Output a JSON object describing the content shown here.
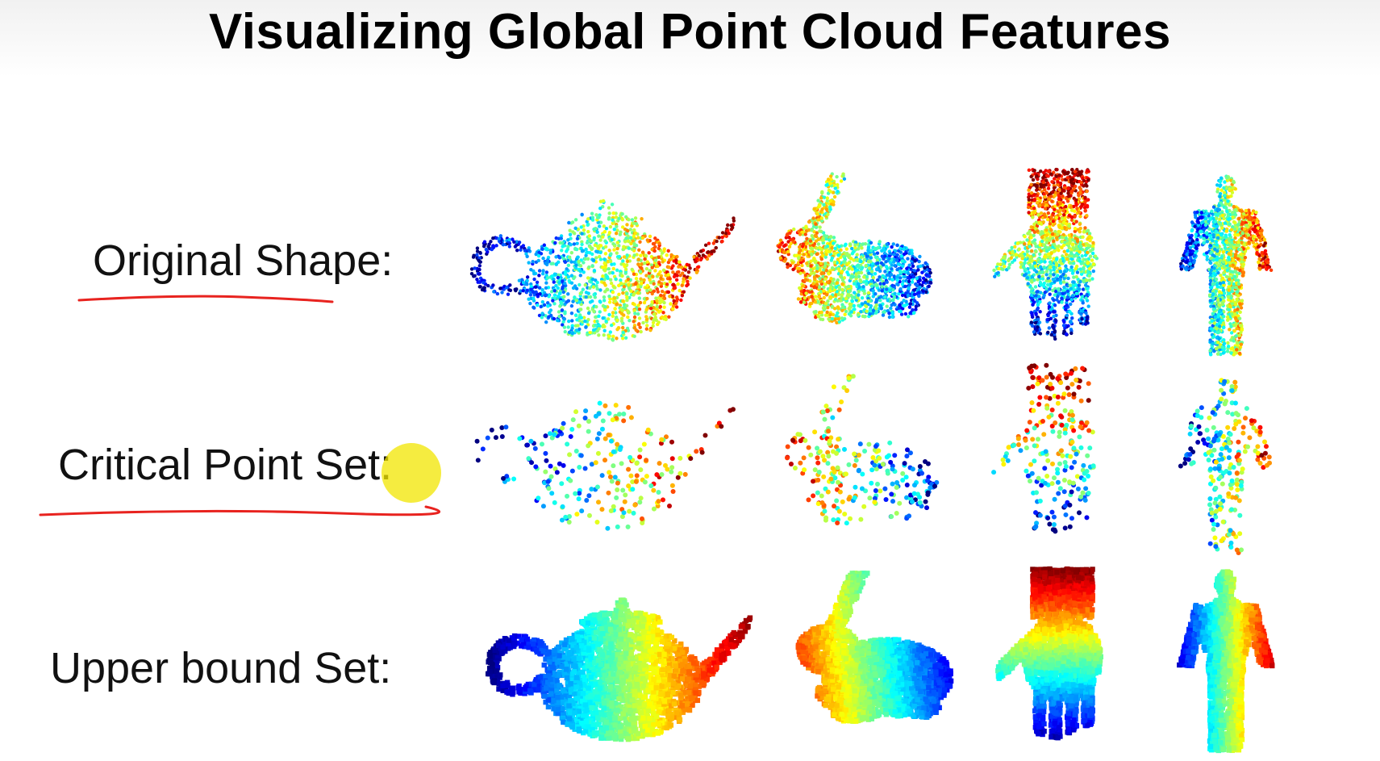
{
  "slide": {
    "title": "Visualizing Global Point Cloud Features",
    "rows": [
      {
        "label": "Original Shape:"
      },
      {
        "label": "Critical Point Set:"
      },
      {
        "label": "Upper bound Set:"
      }
    ],
    "shapes": [
      "teapot",
      "bunny",
      "hand",
      "human"
    ],
    "annotation_colors": {
      "underline": "#e8231f",
      "highlight": "#f2e600"
    }
  }
}
